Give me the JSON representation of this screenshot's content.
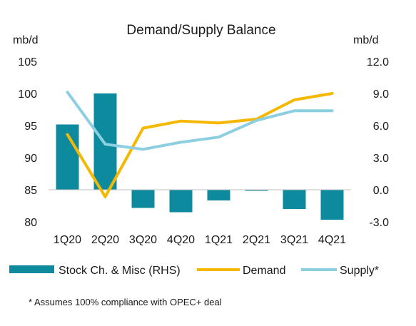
{
  "chart_data": {
    "type": "bar+line",
    "title": "Demand/Supply Balance",
    "left_axis": {
      "unit": "mb/d",
      "ylim": [
        80,
        105
      ],
      "ticks": [
        "80",
        "85",
        "90",
        "95",
        "100",
        "105"
      ]
    },
    "right_axis": {
      "unit": "mb/d",
      "ylim": [
        -3,
        12
      ],
      "ticks": [
        "-3.0",
        "0.0",
        "3.0",
        "6.0",
        "9.0",
        "12.0"
      ]
    },
    "categories": [
      "1Q20",
      "2Q20",
      "3Q20",
      "4Q20",
      "1Q21",
      "2Q21",
      "3Q21",
      "4Q21"
    ],
    "series": [
      {
        "name": "Stock Ch. & Misc (RHS)",
        "type": "bar",
        "axis": "right",
        "color": "#0e8a9e",
        "values": [
          6.1,
          9.0,
          -1.7,
          -2.1,
          -1.0,
          -0.1,
          -1.8,
          -2.8
        ]
      },
      {
        "name": "Demand",
        "type": "line",
        "axis": "left",
        "color": "#f5b800",
        "values": [
          93.6,
          83.9,
          94.6,
          95.7,
          95.4,
          96.0,
          99.0,
          100.0
        ]
      },
      {
        "name": "Supply*",
        "type": "line",
        "axis": "left",
        "color": "#8ccfe0",
        "values": [
          100.2,
          92.1,
          91.3,
          92.4,
          93.2,
          95.8,
          97.3,
          97.3
        ]
      }
    ],
    "legend_position": "bottom",
    "grid": false
  },
  "footnote": "* Assumes 100% compliance with OPEC+ deal"
}
